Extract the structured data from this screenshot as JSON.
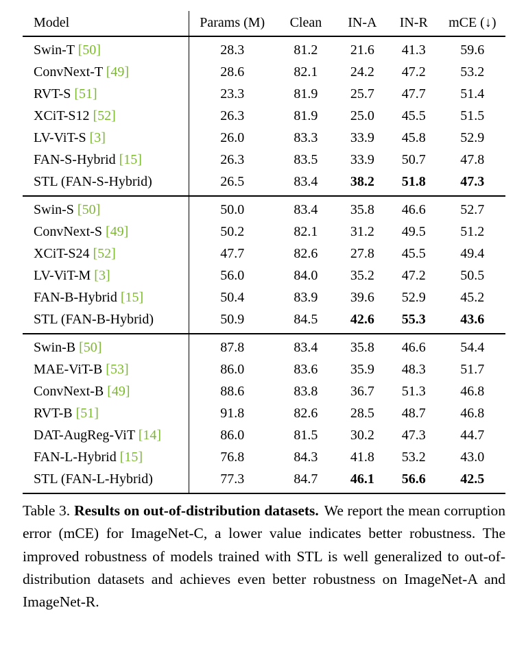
{
  "colors": {
    "citation_green": "#7cb82f",
    "text": "#000000",
    "background": "#ffffff"
  },
  "table": {
    "columns": [
      "Model",
      "Params (M)",
      "Clean",
      "IN-A",
      "IN-R",
      "mCE (↓)"
    ],
    "groups": [
      {
        "rows": [
          {
            "model": "Swin-T",
            "cite": "[50]",
            "values": [
              "28.3",
              "81.2",
              "21.6",
              "41.3",
              "59.6"
            ],
            "bold": [
              false,
              false,
              false,
              false,
              false
            ]
          },
          {
            "model": "ConvNext-T",
            "cite": "[49]",
            "values": [
              "28.6",
              "82.1",
              "24.2",
              "47.2",
              "53.2"
            ],
            "bold": [
              false,
              false,
              false,
              false,
              false
            ]
          },
          {
            "model": "RVT-S",
            "cite": "[51]",
            "values": [
              "23.3",
              "81.9",
              "25.7",
              "47.7",
              "51.4"
            ],
            "bold": [
              false,
              false,
              false,
              false,
              false
            ]
          },
          {
            "model": "XCiT-S12",
            "cite": "[52]",
            "values": [
              "26.3",
              "81.9",
              "25.0",
              "45.5",
              "51.5"
            ],
            "bold": [
              false,
              false,
              false,
              false,
              false
            ]
          },
          {
            "model": "LV-ViT-S",
            "cite": "[3]",
            "values": [
              "26.0",
              "83.3",
              "33.9",
              "45.8",
              "52.9"
            ],
            "bold": [
              false,
              false,
              false,
              false,
              false
            ]
          },
          {
            "model": "FAN-S-Hybrid",
            "cite": "[15]",
            "values": [
              "26.3",
              "83.5",
              "33.9",
              "50.7",
              "47.8"
            ],
            "bold": [
              false,
              false,
              false,
              false,
              false
            ]
          },
          {
            "model": "STL (FAN-S-Hybrid)",
            "cite": "",
            "values": [
              "26.5",
              "83.4",
              "38.2",
              "51.8",
              "47.3"
            ],
            "bold": [
              false,
              false,
              true,
              true,
              true
            ]
          }
        ]
      },
      {
        "rows": [
          {
            "model": "Swin-S",
            "cite": "[50]",
            "values": [
              "50.0",
              "83.4",
              "35.8",
              "46.6",
              "52.7"
            ],
            "bold": [
              false,
              false,
              false,
              false,
              false
            ]
          },
          {
            "model": "ConvNext-S",
            "cite": "[49]",
            "values": [
              "50.2",
              "82.1",
              "31.2",
              "49.5",
              "51.2"
            ],
            "bold": [
              false,
              false,
              false,
              false,
              false
            ]
          },
          {
            "model": "XCiT-S24",
            "cite": "[52]",
            "values": [
              "47.7",
              "82.6",
              "27.8",
              "45.5",
              "49.4"
            ],
            "bold": [
              false,
              false,
              false,
              false,
              false
            ]
          },
          {
            "model": "LV-ViT-M",
            "cite": "[3]",
            "values": [
              "56.0",
              "84.0",
              "35.2",
              "47.2",
              "50.5"
            ],
            "bold": [
              false,
              false,
              false,
              false,
              false
            ]
          },
          {
            "model": "FAN-B-Hybrid",
            "cite": "[15]",
            "values": [
              "50.4",
              "83.9",
              "39.6",
              "52.9",
              "45.2"
            ],
            "bold": [
              false,
              false,
              false,
              false,
              false
            ]
          },
          {
            "model": "STL (FAN-B-Hybrid)",
            "cite": "",
            "values": [
              "50.9",
              "84.5",
              "42.6",
              "55.3",
              "43.6"
            ],
            "bold": [
              false,
              false,
              true,
              true,
              true
            ]
          }
        ]
      },
      {
        "rows": [
          {
            "model": "Swin-B",
            "cite": "[50]",
            "values": [
              "87.8",
              "83.4",
              "35.8",
              "46.6",
              "54.4"
            ],
            "bold": [
              false,
              false,
              false,
              false,
              false
            ]
          },
          {
            "model": "MAE-ViT-B",
            "cite": "[53]",
            "values": [
              "86.0",
              "83.6",
              "35.9",
              "48.3",
              "51.7"
            ],
            "bold": [
              false,
              false,
              false,
              false,
              false
            ]
          },
          {
            "model": "ConvNext-B",
            "cite": "[49]",
            "values": [
              "88.6",
              "83.8",
              "36.7",
              "51.3",
              "46.8"
            ],
            "bold": [
              false,
              false,
              false,
              false,
              false
            ]
          },
          {
            "model": "RVT-B",
            "cite": "[51]",
            "values": [
              "91.8",
              "82.6",
              "28.5",
              "48.7",
              "46.8"
            ],
            "bold": [
              false,
              false,
              false,
              false,
              false
            ]
          },
          {
            "model": "DAT-AugReg-ViT",
            "cite": "[14]",
            "values": [
              "86.0",
              "81.5",
              "30.2",
              "47.3",
              "44.7"
            ],
            "bold": [
              false,
              false,
              false,
              false,
              false
            ]
          },
          {
            "model": "FAN-L-Hybrid",
            "cite": "[15]",
            "values": [
              "76.8",
              "84.3",
              "41.8",
              "53.2",
              "43.0"
            ],
            "bold": [
              false,
              false,
              false,
              false,
              false
            ]
          },
          {
            "model": "STL (FAN-L-Hybrid)",
            "cite": "",
            "values": [
              "77.3",
              "84.7",
              "46.1",
              "56.6",
              "42.5"
            ],
            "bold": [
              false,
              false,
              true,
              true,
              true
            ]
          }
        ]
      }
    ]
  },
  "caption": {
    "label": "Table 3.",
    "bold_text": "Results on out-of-distribution datasets.",
    "text": "We report the mean corruption error (mCE) for ImageNet-C, a lower value indicates better robustness. The improved robustness of models trained with STL is well generalized to out-of-distribution datasets and achieves even better robustness on ImageNet-A and ImageNet-R."
  }
}
